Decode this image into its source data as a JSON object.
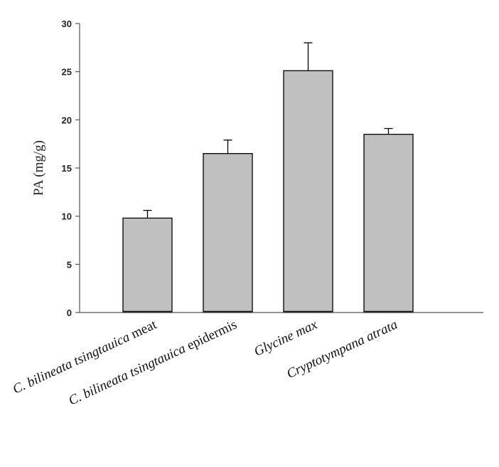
{
  "chart_data": {
    "type": "bar",
    "title": "",
    "xlabel": "",
    "ylabel": "PA (mg/g)",
    "ylim": [
      0,
      30
    ],
    "yticks": [
      0,
      5,
      10,
      15,
      20,
      25,
      30
    ],
    "grid": false,
    "categories": [
      {
        "italic": "C. bilineata tsingtauica",
        "upright": " meat"
      },
      {
        "italic": "C. bilineata tsingtauica",
        "upright": " epidermis"
      },
      {
        "italic": "Glycine max",
        "upright": ""
      },
      {
        "italic": "Cryptotympana atrata",
        "upright": ""
      }
    ],
    "values": [
      9.8,
      16.5,
      25.1,
      18.5
    ],
    "errors": [
      0.8,
      1.4,
      2.9,
      0.6
    ],
    "bar_color": "#c0c0c0",
    "edge_color": "#000000"
  }
}
